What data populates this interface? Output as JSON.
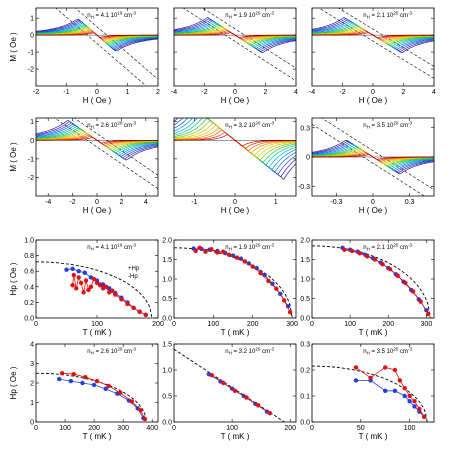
{
  "chart_data": [
    {
      "type": "line",
      "panel": "M vs H",
      "annotation": "n_H = 4.1 10^19 cm^-3",
      "ann_base": "n",
      "ann_sub": "H",
      "ann_val": "= 4.1 10",
      "ann_exp": "19",
      "ann_unit": "cm",
      "ann_uexp": "-3",
      "xlabel": "H ( Oe )",
      "ylabel": "M ( Oe )",
      "xlim": [
        -2,
        2
      ],
      "ylim": [
        -3,
        1.6
      ],
      "xticks": [
        "-2",
        "-1",
        "0",
        "1",
        "2"
      ],
      "yticks": [
        "-2",
        "-1",
        "0",
        "1"
      ],
      "xtickvals": [
        -2,
        -1,
        0,
        1,
        2
      ],
      "ytickvals": [
        -2,
        -1,
        0,
        1
      ],
      "peak": {
        "Hp": 0.62,
        "Mp": 0.85
      },
      "slope": -1.55,
      "dashed": true
    },
    {
      "type": "line",
      "panel": "M vs H",
      "annotation": "n_H = 1.9 10^20 cm^-3",
      "ann_base": "n",
      "ann_sub": "H",
      "ann_val": "= 1.9 10",
      "ann_exp": "20",
      "ann_unit": "cm",
      "ann_uexp": "-3",
      "xlabel": "H ( Oe )",
      "ylabel": "",
      "xlim": [
        -4,
        4
      ],
      "ylim": [
        -3,
        1.6
      ],
      "xticks": [
        "-4",
        "-2",
        "0",
        "2",
        "4"
      ],
      "yticks": [],
      "xtickvals": [
        -4,
        -2,
        0,
        2,
        4
      ],
      "ytickvals": [
        -2,
        -1,
        0,
        1
      ],
      "peak": {
        "Hp": 1.8,
        "Mp": 1.05
      },
      "slope": -0.58,
      "dashed": true
    },
    {
      "type": "line",
      "panel": "M vs H",
      "annotation": "n_H = 2.1 10^20 cm^-3",
      "ann_base": "n",
      "ann_sub": "H",
      "ann_val": "= 2.1 10",
      "ann_exp": "20",
      "ann_unit": "cm",
      "ann_uexp": "-3",
      "xlabel": "H ( Oe )",
      "ylabel": "",
      "xlim": [
        -4,
        4
      ],
      "ylim": [
        -3,
        1.6
      ],
      "xticks": [
        "-4",
        "-2",
        "0",
        "2",
        "4"
      ],
      "yticks": [],
      "xtickvals": [
        -4,
        -2,
        0,
        2,
        4
      ],
      "ytickvals": [
        -2,
        -1,
        0,
        1
      ],
      "peak": {
        "Hp": 1.9,
        "Mp": 1.05
      },
      "slope": -0.55,
      "dashed": true
    },
    {
      "type": "line",
      "panel": "M vs H",
      "annotation": "n_H = 2.6 10^20 cm^-3",
      "ann_base": "n",
      "ann_sub": "H",
      "ann_val": "= 2.6 10",
      "ann_exp": "20",
      "ann_unit": "cm",
      "ann_uexp": "-3",
      "xlabel": "H ( Oe )",
      "ylabel": "M ( Oe )",
      "xlim": [
        -5,
        5
      ],
      "ylim": [
        -3,
        1.2
      ],
      "xticks": [
        "-4",
        "-2",
        "0",
        "2",
        "4"
      ],
      "yticks": [
        "-2",
        "-1",
        "0",
        "1"
      ],
      "xtickvals": [
        -4,
        -2,
        0,
        2,
        4
      ],
      "ytickvals": [
        -2,
        -1,
        0,
        1
      ],
      "peak": {
        "Hp": 2.4,
        "Mp": 1.05
      },
      "slope": -0.45,
      "dashed": true
    },
    {
      "type": "line",
      "panel": "M vs H",
      "annotation": "n_H = 3.2 10^20 cm^-3",
      "ann_base": "n",
      "ann_sub": "H",
      "ann_val": "= 3.2 10",
      "ann_exp": "20",
      "ann_unit": "cm",
      "ann_uexp": "-3",
      "xlabel": "H ( Oe )",
      "ylabel": "",
      "xlim": [
        -1.5,
        1.5
      ],
      "ylim": [
        -3,
        1.2
      ],
      "xticks": [
        "-1",
        "0",
        "1"
      ],
      "yticks": [],
      "xtickvals": [
        -1,
        0,
        1
      ],
      "ytickvals": [
        -2,
        -1,
        0,
        1
      ],
      "peak": {
        "Hp": 1.2,
        "Mp": 1.1
      },
      "slope": -1.75,
      "dashed": false
    },
    {
      "type": "line",
      "panel": "M vs H",
      "annotation": "n_H = 3.5 10^20 cm^-3",
      "ann_base": "n",
      "ann_sub": "H",
      "ann_val": "= 3.5 10",
      "ann_exp": "20",
      "ann_unit": "cm",
      "ann_uexp": "-3",
      "xlabel": "H ( Oe )",
      "ylabel": "",
      "xlim": [
        -0.5,
        0.5
      ],
      "ylim": [
        -0.4,
        0.4
      ],
      "xticks": [
        "-0.3",
        "0",
        "0.3"
      ],
      "yticks": [
        "-0.3",
        "0",
        "0.3"
      ],
      "xtickvals": [
        -0.3,
        0,
        0.3
      ],
      "ytickvals": [
        -0.3,
        0,
        0.3
      ],
      "peak": {
        "Hp": 0.22,
        "Mp": 0.12
      },
      "slope": -0.8,
      "dashed": true
    },
    {
      "type": "line",
      "panel": "Hp vs T",
      "annotation": "n_H = 4.1 10^19 cm^-3",
      "ann_base": "n",
      "ann_sub": "H",
      "ann_val": "= 4.1 10",
      "ann_exp": "19",
      "ann_unit": "cm",
      "ann_uexp": "-3",
      "xlabel": "T ( mK )",
      "ylabel": "H_p ( Oe )",
      "xlim": [
        0,
        200
      ],
      "ylim": [
        0,
        1
      ],
      "xticks": [
        "0",
        "100",
        "200"
      ],
      "yticks": [
        "0.0",
        "0.2",
        "0.4",
        "0.6",
        "0.8",
        "1.0"
      ],
      "xtickvals": [
        0,
        100,
        200
      ],
      "ytickvals": [
        0,
        0.2,
        0.4,
        0.6,
        0.8,
        1.0
      ],
      "legend": [
        "+H_p",
        "-H_p"
      ],
      "fit": {
        "H0": 0.72,
        "Tc": 190
      },
      "blue": {
        "x": [
          50,
          60,
          70,
          80,
          90,
          100,
          110,
          120,
          130,
          140,
          150,
          160,
          170,
          180
        ],
        "y": [
          0.62,
          0.63,
          0.6,
          0.58,
          0.52,
          0.48,
          0.43,
          0.38,
          0.32,
          0.26,
          0.2,
          0.13,
          0.08,
          0.04
        ]
      },
      "red": {
        "x": [
          60,
          62,
          66,
          70,
          74,
          78,
          82,
          86,
          90,
          95,
          100,
          105,
          110,
          115,
          120,
          125,
          130,
          140,
          150,
          160,
          170,
          180
        ],
        "y": [
          0.42,
          0.55,
          0.38,
          0.52,
          0.45,
          0.33,
          0.48,
          0.36,
          0.4,
          0.5,
          0.45,
          0.42,
          0.38,
          0.4,
          0.33,
          0.35,
          0.3,
          0.24,
          0.18,
          0.13,
          0.08,
          0.04
        ]
      }
    },
    {
      "type": "line",
      "panel": "Hp vs T",
      "annotation": "n_H = 1.9 10^20 cm^-3",
      "ann_base": "n",
      "ann_sub": "H",
      "ann_val": "= 1.9 10",
      "ann_exp": "20",
      "ann_unit": "cm",
      "ann_uexp": "-3",
      "xlabel": "T ( mK )",
      "ylabel": "",
      "xlim": [
        0,
        310
      ],
      "ylim": [
        0,
        2
      ],
      "xticks": [
        "0",
        "100",
        "200",
        "300"
      ],
      "yticks": [
        "0.0",
        "0.5",
        "1.0",
        "1.5",
        "2.0"
      ],
      "xtickvals": [
        0,
        100,
        200,
        300
      ],
      "ytickvals": [
        0,
        0.5,
        1.0,
        1.5,
        2.0
      ],
      "fit": {
        "H0": 1.8,
        "Tc": 300
      },
      "blue": {
        "x": [
          50,
          70,
          90,
          110,
          130,
          150,
          170,
          190,
          210,
          230,
          250,
          270,
          290
        ],
        "y": [
          1.78,
          1.77,
          1.75,
          1.72,
          1.67,
          1.6,
          1.52,
          1.4,
          1.28,
          1.1,
          0.88,
          0.62,
          0.3
        ]
      },
      "red": {
        "x": [
          55,
          65,
          80,
          95,
          110,
          125,
          140,
          160,
          180,
          200,
          220,
          240,
          260,
          280,
          295
        ],
        "y": [
          1.72,
          1.8,
          1.7,
          1.76,
          1.68,
          1.7,
          1.62,
          1.55,
          1.45,
          1.32,
          1.15,
          0.95,
          0.75,
          0.45,
          0.15
        ]
      }
    },
    {
      "type": "line",
      "panel": "Hp vs T",
      "annotation": "n_H = 2.1 10^20 cm^-3",
      "ann_base": "n",
      "ann_sub": "H",
      "ann_val": "= 2.1 10",
      "ann_exp": "20",
      "ann_unit": "cm",
      "ann_uexp": "-3",
      "xlabel": "T ( mK )",
      "ylabel": "",
      "xlim": [
        0,
        320
      ],
      "ylim": [
        0,
        2
      ],
      "xticks": [
        "0",
        "100",
        "200",
        "300"
      ],
      "yticks": [
        "0.0",
        "0.5",
        "1.0",
        "1.5",
        "2.0"
      ],
      "xtickvals": [
        0,
        100,
        200,
        300
      ],
      "ytickvals": [
        0,
        0.5,
        1.0,
        1.5,
        2.0
      ],
      "fit": {
        "H0": 1.85,
        "Tc": 310
      },
      "blue": {
        "x": [
          80,
          100,
          120,
          140,
          160,
          180,
          200,
          220,
          240,
          260,
          280,
          300
        ],
        "y": [
          1.8,
          1.75,
          1.7,
          1.62,
          1.53,
          1.42,
          1.28,
          1.12,
          0.93,
          0.72,
          0.48,
          0.2
        ]
      },
      "red": {
        "x": [
          85,
          105,
          125,
          145,
          165,
          185,
          205,
          225,
          245,
          265,
          285,
          305
        ],
        "y": [
          1.75,
          1.72,
          1.66,
          1.58,
          1.5,
          1.38,
          1.25,
          1.08,
          0.9,
          0.68,
          0.42,
          0.1
        ]
      }
    },
    {
      "type": "line",
      "panel": "Hp vs T",
      "annotation": "n_H = 2.6 10^20 cm^-3",
      "ann_base": "n",
      "ann_sub": "H",
      "ann_val": "= 2.6 10",
      "ann_exp": "20",
      "ann_unit": "cm",
      "ann_uexp": "-3",
      "xlabel": "T ( mK )",
      "ylabel": "H_p ( Oe )",
      "xlim": [
        0,
        420
      ],
      "ylim": [
        0,
        4
      ],
      "xticks": [
        "0",
        "100",
        "200",
        "300",
        "400"
      ],
      "yticks": [
        "0",
        "1",
        "2",
        "3",
        "4"
      ],
      "xtickvals": [
        0,
        100,
        200,
        300,
        400
      ],
      "ytickvals": [
        0,
        1,
        2,
        3,
        4
      ],
      "fit": {
        "H0": 2.5,
        "Tc": 380
      },
      "blue": {
        "x": [
          80,
          120,
          160,
          200,
          240,
          280,
          320,
          350,
          370
        ],
        "y": [
          2.2,
          2.1,
          2.0,
          1.9,
          1.7,
          1.45,
          1.1,
          0.7,
          0.2
        ]
      },
      "red": {
        "x": [
          90,
          130,
          170,
          210,
          250,
          290,
          330,
          360,
          375
        ],
        "y": [
          2.5,
          2.45,
          2.3,
          2.1,
          1.85,
          1.5,
          1.05,
          0.6,
          0.15
        ]
      }
    },
    {
      "type": "line",
      "panel": "Hp vs T",
      "annotation": "n_H = 3.2 10^20 cm^-3",
      "ann_base": "n",
      "ann_sub": "H",
      "ann_val": "= 3.2 10",
      "ann_exp": "20",
      "ann_unit": "cm",
      "ann_uexp": "-3",
      "xlabel": "T ( mK )",
      "ylabel": "",
      "xlim": [
        0,
        210
      ],
      "ylim": [
        0,
        1.5
      ],
      "xticks": [
        "0",
        "100",
        "200"
      ],
      "yticks": [
        "0.0",
        "0.5",
        "1.0",
        "1.5"
      ],
      "xtickvals": [
        0,
        100,
        200
      ],
      "ytickvals": [
        0,
        0.5,
        1.0,
        1.5
      ],
      "fit": {
        "H0": 1.4,
        "Tc": 190,
        "linear": true
      },
      "blue": {
        "x": [
          60,
          80,
          100,
          120,
          140,
          160
        ],
        "y": [
          0.92,
          0.78,
          0.64,
          0.5,
          0.35,
          0.2
        ]
      },
      "red": {
        "x": [
          65,
          85,
          105,
          125,
          145,
          165
        ],
        "y": [
          0.9,
          0.75,
          0.6,
          0.47,
          0.32,
          0.17
        ]
      }
    },
    {
      "type": "line",
      "panel": "Hp vs T",
      "annotation": "n_H = 3.5 10^20 cm^-3",
      "ann_base": "n",
      "ann_sub": "H",
      "ann_val": "= 3.5 10",
      "ann_exp": "20",
      "ann_unit": "cm",
      "ann_uexp": "-3",
      "xlabel": "T ( mK )",
      "ylabel": "",
      "xlim": [
        0,
        125
      ],
      "ylim": [
        0,
        0.3
      ],
      "xticks": [
        "0",
        "50",
        "100"
      ],
      "yticks": [
        "0.0",
        "0.1",
        "0.2",
        "0.3"
      ],
      "xtickvals": [
        0,
        50,
        100
      ],
      "ytickvals": [
        0,
        0.1,
        0.2,
        0.3
      ],
      "fit": {
        "H0": 0.215,
        "Tc": 118
      },
      "blue": {
        "x": [
          45,
          60,
          75,
          85,
          95,
          100,
          105,
          110,
          115
        ],
        "y": [
          0.16,
          0.16,
          0.12,
          0.12,
          0.1,
          0.08,
          0.06,
          0.04,
          0.02
        ]
      },
      "red": {
        "x": [
          45,
          60,
          75,
          85,
          90,
          95,
          100,
          105,
          110,
          115
        ],
        "y": [
          0.21,
          0.17,
          0.21,
          0.2,
          0.16,
          0.13,
          0.1,
          0.08,
          0.05,
          0.02
        ]
      }
    }
  ],
  "colors": {
    "blue": "#1f3fe0",
    "red": "#e01010",
    "fit": "#000000"
  }
}
